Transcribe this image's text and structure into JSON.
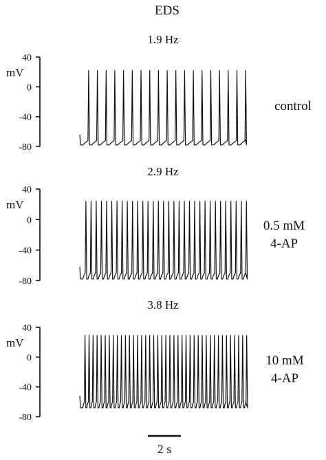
{
  "title": "EDS",
  "scale_bar": {
    "label": "2 s",
    "duration_s": 2
  },
  "chart_data": [
    {
      "type": "line",
      "title": "1.9 Hz",
      "series": [
        {
          "name": "control",
          "frequency_hz": 1.9
        }
      ],
      "ylabel": "mV",
      "yticks": [
        40,
        0,
        -40,
        -80
      ],
      "ylim": [
        -80,
        40
      ],
      "x_range_s": [
        0,
        11
      ],
      "spike_count": 19,
      "spike_peak_mv": 22,
      "resting_mv": -74,
      "trough_mv": -78
    },
    {
      "type": "line",
      "title": "2.9 Hz",
      "series": [
        {
          "name": "0.5 mM\n4-AP",
          "frequency_hz": 2.9
        }
      ],
      "ylabel": "mV",
      "yticks": [
        40,
        0,
        -40,
        -80
      ],
      "ylim": [
        -80,
        40
      ],
      "x_range_s": [
        0,
        11
      ],
      "spike_count": 32,
      "spike_peak_mv": 24,
      "resting_mv": -72,
      "trough_mv": -78
    },
    {
      "type": "line",
      "title": "3.8 Hz",
      "series": [
        {
          "name": "10 mM\n4-AP",
          "frequency_hz": 3.8
        }
      ],
      "ylabel": "mV",
      "yticks": [
        40,
        0,
        -40,
        -80
      ],
      "ylim": [
        -80,
        40
      ],
      "x_range_s": [
        0,
        11
      ],
      "spike_count": 41,
      "spike_peak_mv": 29,
      "resting_mv": -62,
      "trough_mv": -68
    }
  ]
}
